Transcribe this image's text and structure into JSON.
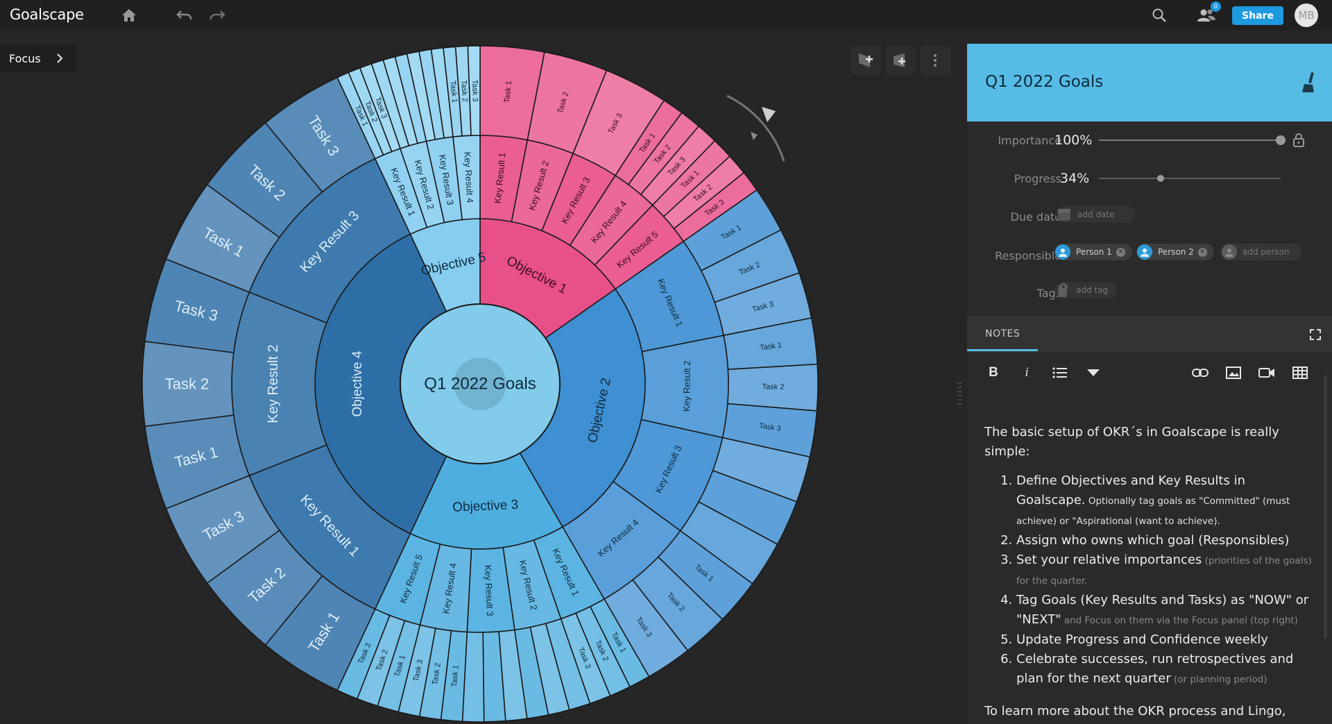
{
  "app": {
    "logo": "Goalscape"
  },
  "topbar": {
    "home_icon": "home-icon",
    "undo_icon": "undo-icon",
    "redo_icon": "redo-icon",
    "search_icon": "search-icon",
    "people_icon": "people-icon",
    "notification_count": "0",
    "share_label": "Share",
    "avatar_initials": "MB"
  },
  "focus": {
    "label": "Focus"
  },
  "canvas_tools": {
    "add_subgoal_icon": "add-subgoal-icon",
    "add_sibling_icon": "add-sibling-icon",
    "more_icon": "more-vertical-icon"
  },
  "sunburst": {
    "center_label": "Q1 2022 Goals",
    "colors": {
      "obj1": "#e8508a",
      "obj2": "#3f8fd3",
      "obj3": "#4eaedf",
      "obj4": "#2d6ea6",
      "obj5": "#86cdf0",
      "center": "#82cbeb"
    },
    "objectives": [
      {
        "label": "Objective 1",
        "krs": [
          {
            "label": "Key Result 1",
            "tasks": [
              "Task 1"
            ]
          },
          {
            "label": "Key Result 2",
            "tasks": [
              "Task 2"
            ]
          },
          {
            "label": "Key Result 3",
            "tasks": [
              "Task 3"
            ]
          },
          {
            "label": "Key Result 4",
            "tasks": [
              "Task 1",
              "Task 2",
              "Task 3"
            ]
          },
          {
            "label": "Key Result 5",
            "tasks": [
              "Task 1",
              "Task 2",
              "Task 3"
            ]
          }
        ]
      },
      {
        "label": "Objective 2",
        "krs": [
          {
            "label": "Key Result 1",
            "tasks": [
              "Task 1",
              "Task 2",
              "Task 3"
            ]
          },
          {
            "label": "Key Result 2",
            "tasks": [
              "Task 1",
              "Task 2",
              "Task 3"
            ]
          },
          {
            "label": "Key Result 3",
            "tasks": [
              "",
              "",
              ""
            ]
          },
          {
            "label": "Key Result 4",
            "tasks": [
              "Task 1",
              "Task 2",
              "Task 3"
            ]
          }
        ]
      },
      {
        "label": "Objective 3",
        "krs": [
          {
            "label": "Key Result 1",
            "tasks": [
              "Task 1",
              "Task 2",
              "Task 3"
            ]
          },
          {
            "label": "Key Result 2",
            "tasks": [
              "",
              "",
              ""
            ]
          },
          {
            "label": "Key Result 3",
            "tasks": [
              "",
              "",
              ""
            ]
          },
          {
            "label": "Key Result 4",
            "tasks": [
              "Task 1",
              "Task 2",
              "Task 3"
            ]
          },
          {
            "label": "Key Result 5",
            "tasks": [
              "Task 1",
              "Task 2",
              "Task 3"
            ]
          }
        ]
      },
      {
        "label": "Objective 4",
        "krs": [
          {
            "label": "Key Result 1",
            "tasks": [
              "Task 1",
              "Task 2",
              "Task 3"
            ]
          },
          {
            "label": "Key Result 2",
            "tasks": [
              "Task 1",
              "Task 2",
              "Task 3"
            ]
          },
          {
            "label": "Key Result 3",
            "tasks": [
              "Task 1",
              "Task 2",
              "Task 3"
            ]
          }
        ]
      },
      {
        "label": "Objective 5",
        "krs": [
          {
            "label": "Key Result 1",
            "tasks": [
              "Task 1",
              "Task 2",
              "Task 3"
            ]
          },
          {
            "label": "Key Result 2",
            "tasks": [
              "",
              "",
              ""
            ]
          },
          {
            "label": "Key Result 3",
            "tasks": [
              "",
              "",
              ""
            ]
          },
          {
            "label": "Key Result 4",
            "tasks": [
              "Task 1",
              "Task 2",
              "Task 3"
            ]
          }
        ]
      }
    ]
  },
  "panel": {
    "title": "Q1 2022 Goals",
    "brush_icon": "brush-icon",
    "importance": {
      "label": "Importance",
      "value": "100%",
      "fraction": 1.0
    },
    "lock_icon": "lock-icon",
    "progress": {
      "label": "Progress",
      "value": "34%",
      "fraction": 0.34
    },
    "due_date": {
      "label": "Due date",
      "placeholder": "add date"
    },
    "responsible": {
      "label": "Responsible",
      "people": [
        "Person 1",
        "Person 2"
      ],
      "add_label": "add person"
    },
    "tags": {
      "label": "Tags",
      "add_label": "add tag"
    },
    "notes": {
      "title": "NOTES",
      "expand_icon": "expand-icon",
      "toolbar": [
        "bold-icon",
        "italic-icon",
        "list-icon",
        "dropdown-icon",
        "link-icon",
        "image-icon",
        "video-icon",
        "table-icon"
      ],
      "intro": "The basic setup of OKR´s in Goalscape is really simple:",
      "items": [
        {
          "main": "Define Objectives and Key Results in Goalscape.",
          "small": " Optionally tag goals as \"Committed\" (must achieve) or \"Aspirational (want to achieve).",
          "dim": ""
        },
        {
          "main": "Assign who owns which goal (Responsibles)",
          "small": "",
          "dim": ""
        },
        {
          "main": "Set your relative importances",
          "small": "",
          "dim": " (priorities of the goals) for the quarter."
        },
        {
          "main": "Tag Goals (Key Results and Tasks) as \"NOW\" or \"NEXT\"",
          "small": " and Focus on them via the Focus panel (top right)",
          "dim": ""
        },
        {
          "main": "Update Progress and Confidence weekly",
          "small": "",
          "dim": ""
        },
        {
          "main": "Celebrate successes, run retrospectives and plan for the next quarter",
          "small": "",
          "dim": " (or planning period)"
        }
      ],
      "outro": "To learn more about the OKR process and Lingo,"
    }
  }
}
